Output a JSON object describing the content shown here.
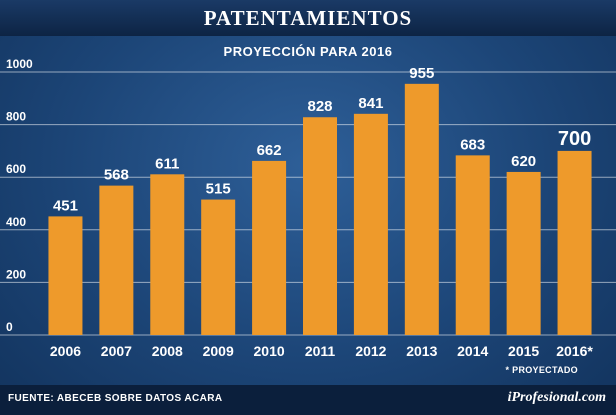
{
  "header": {
    "title": "PATENTAMIENTOS"
  },
  "footer": {
    "source": "FUENTE: ABECEB SOBRE DATOS ACARA",
    "brand": "iProfesional.com"
  },
  "chart_data": {
    "type": "bar",
    "title": "PROYECCIÓN PARA 2016",
    "categories": [
      "2006",
      "2007",
      "2008",
      "2009",
      "2010",
      "2011",
      "2012",
      "2013",
      "2014",
      "2015",
      "2016*"
    ],
    "values": [
      451,
      568,
      611,
      515,
      662,
      828,
      841,
      955,
      683,
      620,
      700
    ],
    "value_labels": [
      "451",
      "568",
      "611",
      "515",
      "662",
      "828",
      "841",
      "955",
      "683",
      "620",
      "700"
    ],
    "highlight_index": 10,
    "yticks": [
      0,
      200,
      400,
      600,
      800,
      1000
    ],
    "ytick_labels": [
      "0",
      "200",
      "400",
      "600",
      "800",
      "1000"
    ],
    "ylim": [
      0,
      1000
    ],
    "grid": true,
    "xlabel": "",
    "ylabel": "",
    "note": "* PROYECTADO",
    "colors": {
      "bar": "#ee9a2b",
      "grid": "#ffffff",
      "text": "#ffffff"
    }
  }
}
